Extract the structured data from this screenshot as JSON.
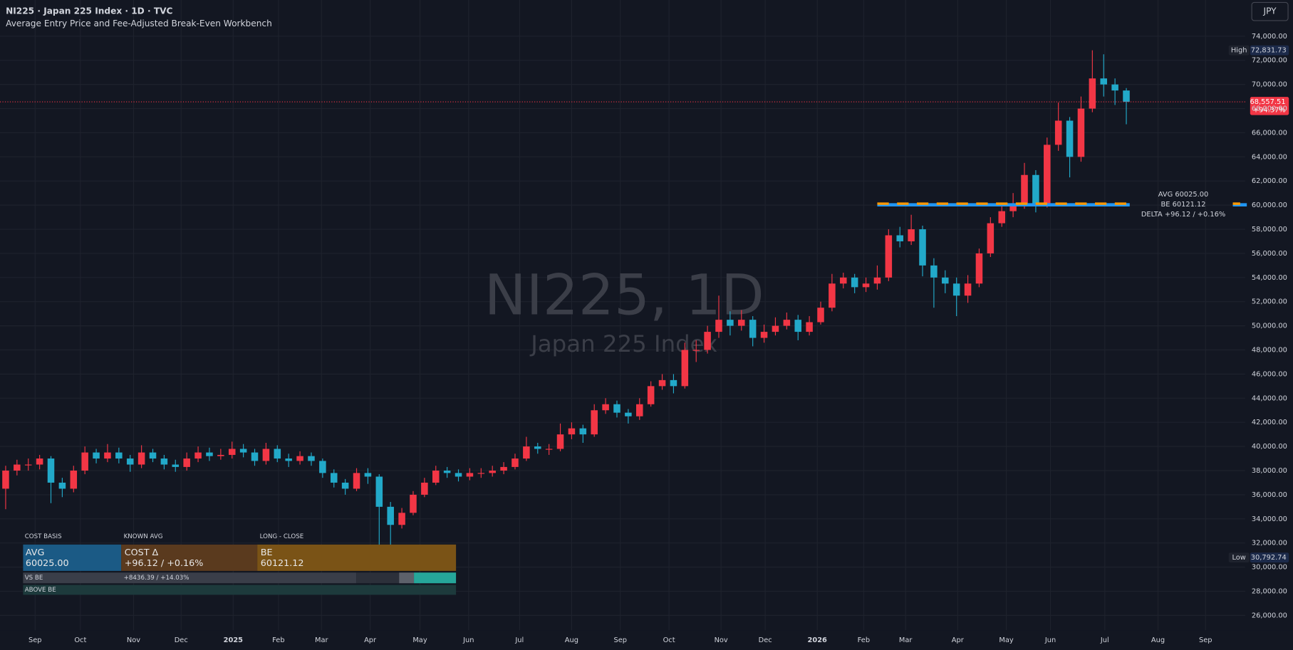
{
  "chart_data": {
    "type": "candlestick",
    "title": "NI225 · Japan 225 Index · 1D · TVC",
    "subtitle": "Average Entry Price and Fee-Adjusted Break-Even Workbench",
    "currency": "JPY",
    "watermark": "NI225, 1D",
    "watermark_subtitle": "Japan 225 Index",
    "up_color": "#f23645",
    "down_color": "#22a9c9",
    "open": [
      36500,
      38000,
      38500,
      38500,
      39000,
      37000,
      36500,
      38000,
      39500,
      39000,
      39500,
      39000,
      38500,
      39500,
      39000,
      38500,
      38300,
      39000,
      39500,
      39200,
      39300,
      39800,
      39500,
      38800,
      39800,
      39000,
      38800,
      39200,
      38800,
      37800,
      37000,
      36500,
      37800,
      37500,
      35000,
      33500,
      34500,
      36000,
      37000,
      38000,
      37800,
      37500,
      37800,
      37800,
      38000,
      38300,
      39000,
      40000,
      39800,
      39800,
      41000,
      41500,
      41000,
      43000,
      43500,
      42800,
      42500,
      43500,
      45000,
      45500,
      45000,
      48000,
      48000,
      49500,
      50500,
      50000,
      50500,
      49000,
      49500,
      50000,
      50500,
      49500,
      50300,
      51500,
      53500,
      54000,
      53200,
      53500,
      54000,
      57500,
      57000,
      58000,
      55000,
      54000,
      53500,
      52500,
      53500,
      56000,
      58500,
      59500,
      60000,
      62500,
      60000,
      65000,
      67000,
      64000,
      68000,
      70500,
      70000,
      69500
    ],
    "high": [
      38400,
      38900,
      39000,
      39300,
      39200,
      37400,
      38400,
      40000,
      39800,
      40200,
      39900,
      39300,
      40100,
      39800,
      39300,
      38900,
      39500,
      40000,
      39900,
      39800,
      40400,
      40200,
      39800,
      40300,
      40100,
      39400,
      39600,
      39500,
      39000,
      38100,
      37300,
      38200,
      38200,
      37700,
      35400,
      34900,
      36300,
      37400,
      38400,
      38300,
      38100,
      38200,
      38200,
      38400,
      38700,
      39400,
      40800,
      40300,
      40200,
      41900,
      42000,
      41800,
      43500,
      44000,
      43800,
      43100,
      44000,
      45400,
      46000,
      46000,
      48600,
      48800,
      50000,
      52500,
      51200,
      51300,
      50800,
      50100,
      50700,
      51100,
      50900,
      50800,
      52000,
      54300,
      54400,
      54300,
      54000,
      55000,
      58000,
      58200,
      59200,
      58300,
      55600,
      54600,
      54000,
      54200,
      56400,
      59000,
      60000,
      61000,
      63500,
      62900,
      65600,
      68500,
      67300,
      69000,
      72831.73,
      72500,
      70500,
      69700
    ],
    "low": [
      34800,
      37600,
      38000,
      38100,
      35300,
      35800,
      36200,
      37700,
      38600,
      38700,
      38600,
      37900,
      38200,
      38700,
      38100,
      37900,
      38000,
      38700,
      38800,
      38900,
      39000,
      39100,
      38400,
      38500,
      38700,
      38300,
      38500,
      38400,
      37400,
      36600,
      36000,
      36300,
      36900,
      30792.74,
      31200,
      33200,
      34300,
      35800,
      36800,
      37400,
      37100,
      37200,
      37400,
      37500,
      37700,
      38100,
      38800,
      39400,
      39300,
      39600,
      40600,
      40300,
      40800,
      42700,
      42400,
      41900,
      42200,
      43300,
      44700,
      44400,
      44800,
      47000,
      47700,
      49000,
      49200,
      49600,
      48300,
      48600,
      49200,
      49700,
      48800,
      49200,
      50100,
      51200,
      53100,
      52700,
      52800,
      53000,
      53700,
      56500,
      56700,
      54100,
      51500,
      52700,
      50800,
      51900,
      53200,
      55700,
      58200,
      59000,
      59700,
      59400,
      59800,
      64500,
      62300,
      63600,
      67700,
      69000,
      68300,
      66700
    ],
    "close": [
      38000,
      38500,
      38500,
      39000,
      37000,
      36500,
      38000,
      39500,
      39000,
      39500,
      39000,
      38500,
      39500,
      39000,
      38500,
      38300,
      39000,
      39500,
      39200,
      39300,
      39800,
      39500,
      38800,
      39800,
      39000,
      38800,
      39200,
      38800,
      37800,
      37000,
      36500,
      37800,
      37500,
      35000,
      33500,
      34500,
      36000,
      37000,
      38000,
      37800,
      37500,
      37800,
      37800,
      38000,
      38300,
      39000,
      40000,
      39800,
      39800,
      41000,
      41500,
      41000,
      43000,
      43500,
      42800,
      42500,
      43500,
      45000,
      45500,
      45000,
      48000,
      48000,
      49500,
      50500,
      50000,
      50500,
      49000,
      49500,
      50000,
      50500,
      49500,
      50300,
      51500,
      53500,
      54000,
      53200,
      53500,
      54000,
      57500,
      57000,
      58000,
      55000,
      54000,
      53500,
      52500,
      53500,
      56000,
      58500,
      59500,
      60000,
      62500,
      60000,
      65000,
      67000,
      64000,
      68000,
      70500,
      70000,
      69500,
      68557.51
    ],
    "xlim": [
      0,
      110
    ],
    "xticks": [
      {
        "value": 3.1,
        "label": "Sep"
      },
      {
        "value": 7.1,
        "label": "Oct"
      },
      {
        "value": 11.8,
        "label": "Nov"
      },
      {
        "value": 16.0,
        "label": "Dec"
      },
      {
        "value": 20.6,
        "label": "2025"
      },
      {
        "value": 24.6,
        "label": "Feb"
      },
      {
        "value": 28.4,
        "label": "Mar"
      },
      {
        "value": 32.7,
        "label": "Apr"
      },
      {
        "value": 37.1,
        "label": "May"
      },
      {
        "value": 41.4,
        "label": "Jun"
      },
      {
        "value": 45.9,
        "label": "Jul"
      },
      {
        "value": 50.5,
        "label": "Aug"
      },
      {
        "value": 54.8,
        "label": "Sep"
      },
      {
        "value": 59.1,
        "label": "Oct"
      },
      {
        "value": 63.7,
        "label": "Nov"
      },
      {
        "value": 67.6,
        "label": "Dec"
      },
      {
        "value": 72.2,
        "label": "2026"
      },
      {
        "value": 76.3,
        "label": "Feb"
      },
      {
        "value": 80.0,
        "label": "Mar"
      },
      {
        "value": 84.6,
        "label": "Apr"
      },
      {
        "value": 88.9,
        "label": "May"
      },
      {
        "value": 92.8,
        "label": "Jun"
      },
      {
        "value": 97.6,
        "label": "Jul"
      },
      {
        "value": 102.3,
        "label": "Aug"
      },
      {
        "value": 106.5,
        "label": "Sep"
      }
    ],
    "ylim": [
      24770,
      77000
    ],
    "yticks": [
      {
        "value": 26000,
        "label": "26,000.00"
      },
      {
        "value": 28000,
        "label": "28,000.00"
      },
      {
        "value": 30000,
        "label": "30,000.00"
      },
      {
        "value": 32000,
        "label": "32,000.00"
      },
      {
        "value": 34000,
        "label": "34,000.00"
      },
      {
        "value": 36000,
        "label": "36,000.00"
      },
      {
        "value": 38000,
        "label": "38,000.00"
      },
      {
        "value": 40000,
        "label": "40,000.00"
      },
      {
        "value": 42000,
        "label": "42,000.00"
      },
      {
        "value": 44000,
        "label": "44,000.00"
      },
      {
        "value": 46000,
        "label": "46,000.00"
      },
      {
        "value": 48000,
        "label": "48,000.00"
      },
      {
        "value": 50000,
        "label": "50,000.00"
      },
      {
        "value": 52000,
        "label": "52,000.00"
      },
      {
        "value": 54000,
        "label": "54,000.00"
      },
      {
        "value": 56000,
        "label": "56,000.00"
      },
      {
        "value": 58000,
        "label": "58,000.00"
      },
      {
        "value": 60000,
        "label": "60,000.00"
      },
      {
        "value": 62000,
        "label": "62,000.00"
      },
      {
        "value": 64000,
        "label": "64,000.00"
      },
      {
        "value": 66000,
        "label": "66,000.00"
      },
      {
        "value": 68000,
        "label": "68,000.00"
      },
      {
        "value": 70000,
        "label": "70,000.00"
      },
      {
        "value": 72000,
        "label": "72,000.00"
      },
      {
        "value": 74000,
        "label": "74,000.00"
      }
    ],
    "grid": true,
    "high_marker": {
      "title": "High",
      "value": 72831.73,
      "label": "72,831.73"
    },
    "low_marker": {
      "title": "Low",
      "value": 30792.74,
      "label": "30,792.74"
    },
    "last_price": {
      "value": 68557.51,
      "label": "68,557.51",
      "change": "+94.37%"
    },
    "avg_level": {
      "value": 60025,
      "label": "AVG 60025.00",
      "color": "#2196f3"
    },
    "be_level": {
      "value": 60121.12,
      "label": "BE 60121.12",
      "color": "#ff9800"
    },
    "delta_label": "DELTA +96.12 / +0.16%"
  },
  "panel": {
    "headers": [
      "COST BASIS",
      "KNOWN AVG",
      "LONG  -  CLOSE"
    ],
    "cells": [
      {
        "label": "AVG",
        "value": "60025.00"
      },
      {
        "label": "COST Δ",
        "value": "+96.12 / +0.16%"
      },
      {
        "label": "BE",
        "value": "60121.12"
      }
    ],
    "vs_be": {
      "label": "VS BE",
      "value": "+8436.39 / +14.03%"
    },
    "status": "ABOVE BE"
  }
}
